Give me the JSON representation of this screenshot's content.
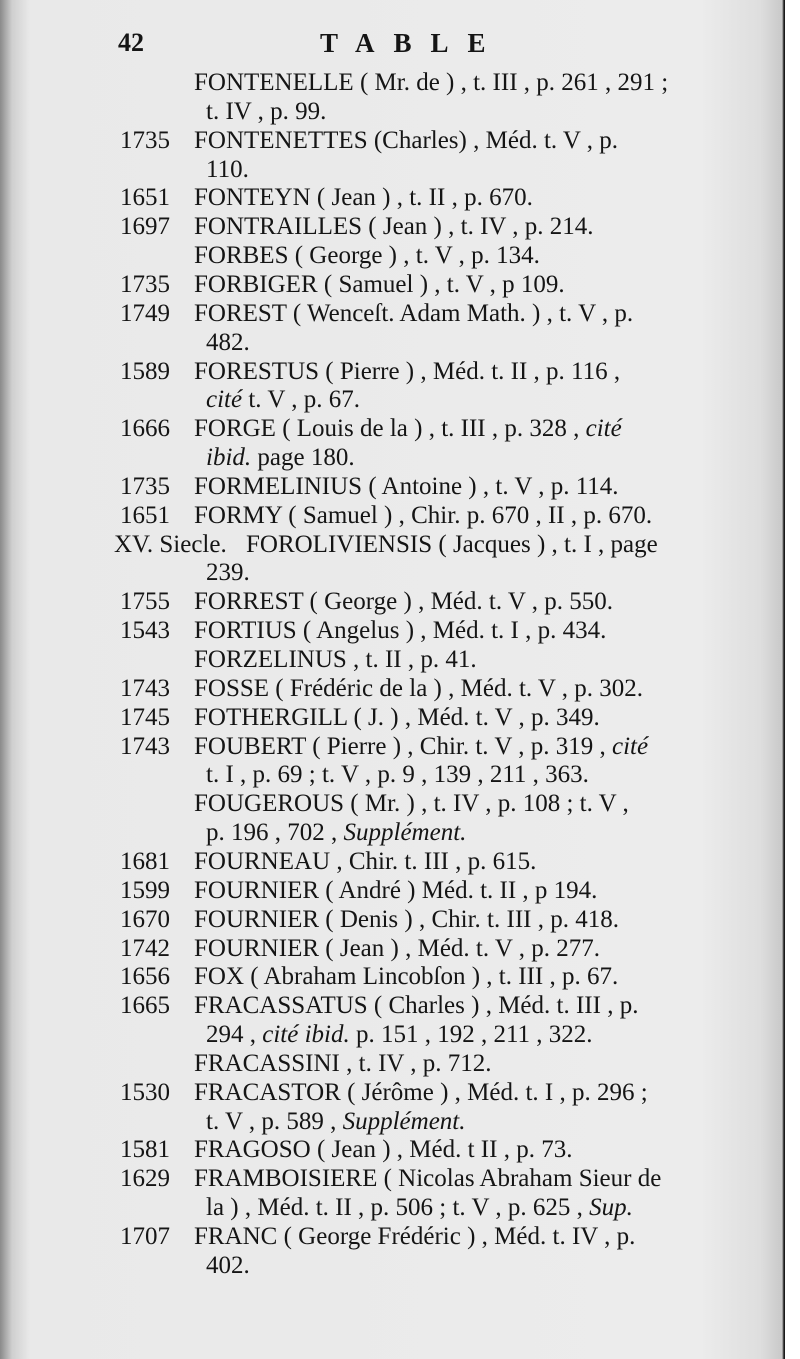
{
  "header": {
    "page_number": "42",
    "running_title": "TABLE"
  },
  "entries": [
    {
      "year": "",
      "lines": [
        [
          {
            "t": "FONTENELLE ( Mr. de ) , t. III , p. 261 , 291 ;"
          }
        ],
        [
          {
            "t": "t. IV , p. 99."
          }
        ]
      ]
    },
    {
      "year": "1735",
      "lines": [
        [
          {
            "t": "FONTENETTES (Charles) , Méd. t. V , p."
          }
        ],
        [
          {
            "t": "110."
          }
        ]
      ]
    },
    {
      "year": "1651",
      "lines": [
        [
          {
            "t": "FONTEYN ( Jean ) , t. II , p. 670."
          }
        ]
      ]
    },
    {
      "year": "1697",
      "lines": [
        [
          {
            "t": "FONTRAILLES ( Jean ) , t. IV , p. 214."
          }
        ]
      ]
    },
    {
      "year": "",
      "lines": [
        [
          {
            "t": "FORBES ( George ) , t. V , p. 134."
          }
        ]
      ]
    },
    {
      "year": "1735",
      "lines": [
        [
          {
            "t": "FORBIGER ( Samuel ) , t. V , p 109."
          }
        ]
      ]
    },
    {
      "year": "1749",
      "lines": [
        [
          {
            "t": "FOREST ( Wenceſt. Adam Math. ) , t. V , p."
          }
        ],
        [
          {
            "t": "482."
          }
        ]
      ]
    },
    {
      "year": "1589",
      "lines": [
        [
          {
            "t": "FORESTUS ( Pierre ) , Méd. t. II , p. 116 ,"
          }
        ],
        [
          {
            "t": "cité",
            "i": true
          },
          {
            "t": " t. V , p. 67."
          }
        ]
      ]
    },
    {
      "year": "1666",
      "lines": [
        [
          {
            "t": "FORGE ( Louis de la ) , t. III , p. 328 , "
          },
          {
            "t": "cité",
            "i": true
          }
        ],
        [
          {
            "t": "ibid.",
            "i": true
          },
          {
            "t": " page 180."
          }
        ]
      ]
    },
    {
      "year": "1735",
      "lines": [
        [
          {
            "t": "FORMELINIUS ( Antoine ) , t. V , p. 114."
          }
        ]
      ]
    },
    {
      "year": "1651",
      "lines": [
        [
          {
            "t": "FORMY ( Samuel ) , Chir. p. 670 , II , p. 670."
          }
        ]
      ]
    },
    {
      "year": "XV. Siecle.",
      "lines": [
        [
          {
            "t": "FOROLIVIENSIS ( Jacques ) , t. I , page"
          }
        ],
        [
          {
            "t": "239."
          }
        ]
      ]
    },
    {
      "year": "1755",
      "lines": [
        [
          {
            "t": "FORREST ( George ) , Méd. t. V , p. 550."
          }
        ]
      ]
    },
    {
      "year": "1543",
      "lines": [
        [
          {
            "t": "FORTIUS ( Angelus ) , Méd. t. I , p. 434."
          }
        ]
      ]
    },
    {
      "year": "",
      "lines": [
        [
          {
            "t": "FORZELINUS , t. II , p. 41."
          }
        ]
      ]
    },
    {
      "year": "1743",
      "lines": [
        [
          {
            "t": "FOSSE ( Frédéric de la ) , Méd. t. V , p. 302."
          }
        ]
      ]
    },
    {
      "year": "1745",
      "lines": [
        [
          {
            "t": "FOTHERGILL ( J. ) , Méd. t. V , p. 349."
          }
        ]
      ]
    },
    {
      "year": "1743",
      "lines": [
        [
          {
            "t": "FOUBERT ( Pierre ) , Chir. t. V , p. 319 , "
          },
          {
            "t": "cité",
            "i": true
          }
        ],
        [
          {
            "t": "t. I , p. 69 ; t. V , p. 9 , 139 , 211 , 363."
          }
        ]
      ]
    },
    {
      "year": "",
      "lines": [
        [
          {
            "t": "FOUGEROUS ( Mr. ) , t. IV , p. 108 ; t. V ,"
          }
        ],
        [
          {
            "t": "p. 196 , 702 , "
          },
          {
            "t": "Supplément.",
            "i": true
          }
        ]
      ]
    },
    {
      "year": "1681",
      "lines": [
        [
          {
            "t": "FOURNEAU , Chir. t. III , p. 615."
          }
        ]
      ]
    },
    {
      "year": "1599",
      "lines": [
        [
          {
            "t": "FOURNIER ( André ) Méd. t. II , p 194."
          }
        ]
      ]
    },
    {
      "year": "1670",
      "lines": [
        [
          {
            "t": "FOURNIER ( Denis ) , Chir. t. III , p. 418."
          }
        ]
      ]
    },
    {
      "year": "1742",
      "lines": [
        [
          {
            "t": "FOURNIER ( Jean ) , Méd. t. V , p. 277."
          }
        ]
      ]
    },
    {
      "year": "1656",
      "lines": [
        [
          {
            "t": "FOX ( Abraham Lincobſon ) , t. III , p. 67."
          }
        ]
      ]
    },
    {
      "year": "1665",
      "lines": [
        [
          {
            "t": "FRACASSATUS ( Charles ) , Méd. t. III , p."
          }
        ],
        [
          {
            "t": "294 , "
          },
          {
            "t": "cité ibid.",
            "i": true
          },
          {
            "t": " p. 151 , 192 , 211 , 322."
          }
        ]
      ]
    },
    {
      "year": "",
      "lines": [
        [
          {
            "t": "FRACASSINI , t. IV , p. 712."
          }
        ]
      ]
    },
    {
      "year": "1530",
      "lines": [
        [
          {
            "t": "FRACASTOR ( Jérôme ) , Méd. t. I , p. 296 ;"
          }
        ],
        [
          {
            "t": "t. V , p. 589 , "
          },
          {
            "t": "Supplément.",
            "i": true
          }
        ]
      ]
    },
    {
      "year": "1581",
      "lines": [
        [
          {
            "t": "FRAGOSO ( Jean ) , Méd. t II , p. 73."
          }
        ]
      ]
    },
    {
      "year": "1629",
      "lines": [
        [
          {
            "t": "FRAMBOISIERE ( Nicolas Abraham Sieur de"
          }
        ],
        [
          {
            "t": "la ) , Méd. t. II , p. 506 ; t. V , p. 625 , "
          },
          {
            "t": "Sup.",
            "i": true
          }
        ]
      ]
    },
    {
      "year": "1707",
      "lines": [
        [
          {
            "t": "FRANC ( George Frédéric ) , Méd. t. IV , p."
          }
        ],
        [
          {
            "t": "402."
          }
        ]
      ]
    }
  ]
}
